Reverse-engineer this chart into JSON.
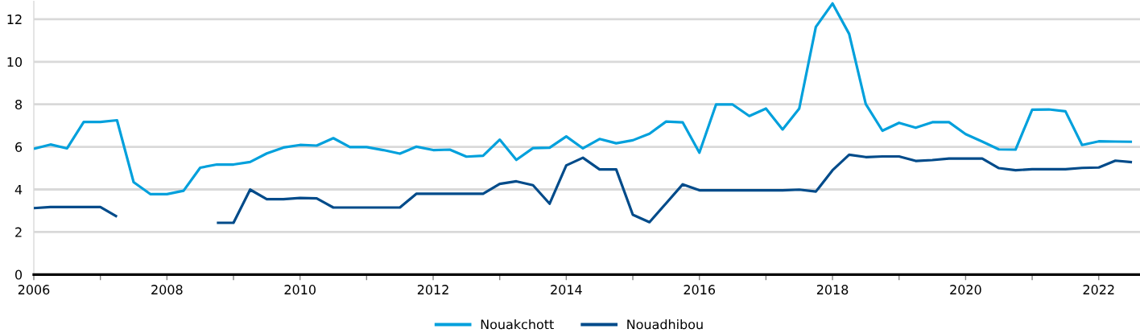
{
  "chart_data": {
    "type": "line",
    "x": [
      2006.0,
      2006.25,
      2006.5,
      2006.75,
      2007.0,
      2007.25,
      2007.5,
      2007.75,
      2008.0,
      2008.25,
      2008.5,
      2008.75,
      2009.0,
      2009.25,
      2009.5,
      2009.75,
      2010.0,
      2010.25,
      2010.5,
      2010.75,
      2011.0,
      2011.25,
      2011.5,
      2011.75,
      2012.0,
      2012.25,
      2012.5,
      2012.75,
      2013.0,
      2013.25,
      2013.5,
      2013.75,
      2014.0,
      2014.25,
      2014.5,
      2014.75,
      2015.0,
      2015.25,
      2015.5,
      2015.75,
      2016.0,
      2016.25,
      2016.5,
      2016.75,
      2017.0,
      2017.25,
      2017.5,
      2017.75,
      2018.0,
      2018.25,
      2018.5,
      2018.75,
      2019.0,
      2019.25,
      2019.5,
      2019.75,
      2020.0,
      2020.25,
      2020.5,
      2020.75,
      2021.0,
      2021.25,
      2021.5,
      2021.75,
      2022.0,
      2022.25,
      2022.5
    ],
    "series": [
      {
        "name": "Nouakchott",
        "color": "#00a0dc",
        "values": [
          5.91,
          6.11,
          5.93,
          7.17,
          7.17,
          7.25,
          4.34,
          3.78,
          3.78,
          3.94,
          5.02,
          5.17,
          5.17,
          5.29,
          5.69,
          5.97,
          6.09,
          6.06,
          6.41,
          5.99,
          5.99,
          5.85,
          5.68,
          6.01,
          5.85,
          5.87,
          5.54,
          5.58,
          6.34,
          5.39,
          5.94,
          5.96,
          6.49,
          5.93,
          6.37,
          6.17,
          6.31,
          6.62,
          7.19,
          7.15,
          5.73,
          7.99,
          7.99,
          7.45,
          7.8,
          6.82,
          7.8,
          11.64,
          12.74,
          11.31,
          8.01,
          6.76,
          7.13,
          6.9,
          7.16,
          7.16,
          6.6,
          6.25,
          5.88,
          5.87,
          7.75,
          7.76,
          7.67,
          6.09,
          6.26,
          6.25,
          6.24
        ]
      },
      {
        "name": "Nouadhibou",
        "color": "#004b8a",
        "values": [
          3.12,
          3.17,
          3.17,
          3.17,
          3.17,
          2.72,
          null,
          null,
          null,
          null,
          null,
          2.43,
          2.43,
          3.99,
          3.54,
          3.54,
          3.6,
          3.58,
          3.15,
          3.15,
          3.15,
          3.15,
          3.15,
          3.8,
          3.8,
          3.8,
          3.8,
          3.8,
          4.26,
          4.38,
          4.2,
          3.33,
          5.13,
          5.49,
          4.94,
          4.94,
          2.81,
          2.46,
          3.35,
          4.24,
          3.96,
          3.96,
          3.96,
          3.96,
          3.96,
          3.96,
          3.99,
          3.9,
          4.9,
          5.63,
          5.52,
          5.55,
          5.55,
          5.34,
          5.38,
          5.45,
          5.45,
          5.45,
          5.0,
          4.9,
          4.95,
          4.95,
          4.95,
          5.01,
          5.03,
          5.35,
          5.28
        ]
      }
    ],
    "xlim": [
      2006,
      2022.62
    ],
    "xticks": [
      2006,
      {
        "value": 2007,
        "label": null
      },
      2008,
      {
        "value": 2009,
        "label": null
      },
      2010,
      {
        "value": 2011,
        "label": null
      },
      2012,
      {
        "value": 2013,
        "label": null
      },
      2014,
      {
        "value": 2015,
        "label": null
      },
      2016,
      {
        "value": 2017,
        "label": null
      },
      2018,
      {
        "value": 2019,
        "label": null
      },
      2020,
      {
        "value": 2021,
        "label": null
      },
      2022
    ],
    "ylim": [
      0,
      12.84
    ],
    "yticks": [
      0,
      2,
      4,
      6,
      8,
      10,
      12
    ],
    "grid": "y",
    "legend": "bottom",
    "line_style": "solid"
  }
}
